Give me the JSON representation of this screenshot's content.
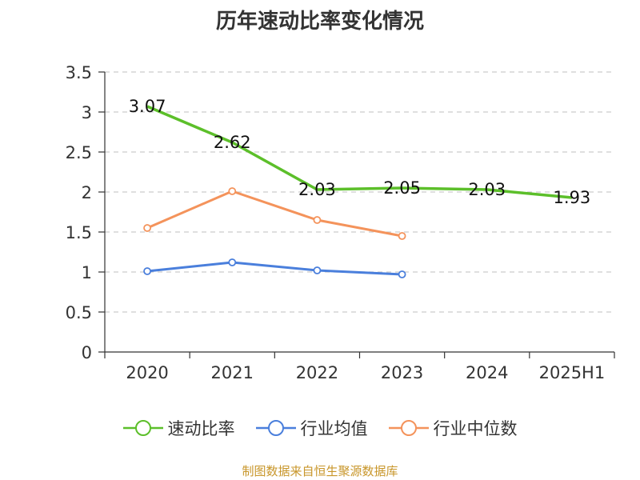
{
  "title": "历年速动比率变化情况",
  "source": "制图数据来自恒生聚源数据库",
  "chart_data": {
    "type": "line",
    "categories": [
      "2020",
      "2021",
      "2022",
      "2023",
      "2024",
      "2025H1"
    ],
    "ylim": [
      0,
      3.5
    ],
    "yticks": [
      "0",
      "0.5",
      "1",
      "1.5",
      "2",
      "2.5",
      "3",
      "3.5"
    ],
    "grid": true,
    "legend_position": "bottom",
    "series": [
      {
        "name": "速动比率",
        "color": "#5cbf2a",
        "values": [
          3.07,
          2.62,
          2.03,
          2.05,
          2.03,
          1.93
        ],
        "labels": [
          "3.07",
          "2.62",
          "2.03",
          "2.05",
          "2.03",
          "1.93"
        ]
      },
      {
        "name": "行业均值",
        "color": "#4a7fdc",
        "values": [
          1.01,
          1.12,
          1.02,
          0.97,
          null,
          null
        ]
      },
      {
        "name": "行业中位数",
        "color": "#f4935b",
        "values": [
          1.55,
          2.01,
          1.65,
          1.45,
          null,
          null
        ]
      }
    ]
  }
}
